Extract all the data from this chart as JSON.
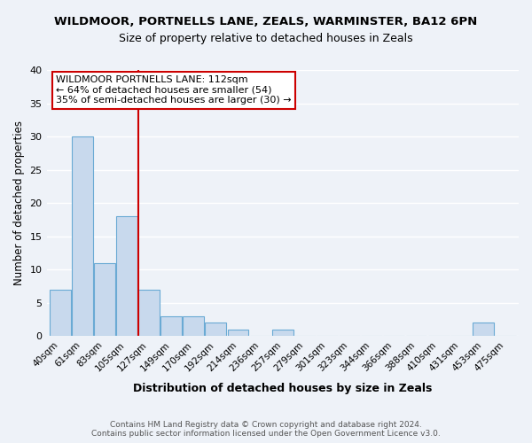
{
  "title": "WILDMOOR, PORTNELLS LANE, ZEALS, WARMINSTER, BA12 6PN",
  "subtitle": "Size of property relative to detached houses in Zeals",
  "xlabel": "Distribution of detached houses by size in Zeals",
  "ylabel": "Number of detached properties",
  "bin_labels": [
    "40sqm",
    "61sqm",
    "83sqm",
    "105sqm",
    "127sqm",
    "149sqm",
    "170sqm",
    "192sqm",
    "214sqm",
    "236sqm",
    "257sqm",
    "279sqm",
    "301sqm",
    "323sqm",
    "344sqm",
    "366sqm",
    "388sqm",
    "410sqm",
    "431sqm",
    "453sqm",
    "475sqm"
  ],
  "bin_counts": [
    7,
    30,
    11,
    18,
    7,
    3,
    3,
    2,
    1,
    0,
    1,
    0,
    0,
    0,
    0,
    0,
    0,
    0,
    0,
    2,
    0
  ],
  "bar_color": "#c8d9ed",
  "bar_edge_color": "#6aaad4",
  "ylim": [
    0,
    40
  ],
  "yticks": [
    0,
    5,
    10,
    15,
    20,
    25,
    30,
    35,
    40
  ],
  "property_line_x": 3.5,
  "property_line_color": "#cc0000",
  "annotation_title": "WILDMOOR PORTNELLS LANE: 112sqm",
  "annotation_line1": "← 64% of detached houses are smaller (54)",
  "annotation_line2": "35% of semi-detached houses are larger (30) →",
  "annotation_box_color": "#cc0000",
  "footer_line1": "Contains HM Land Registry data © Crown copyright and database right 2024.",
  "footer_line2": "Contains public sector information licensed under the Open Government Licence v3.0.",
  "background_color": "#eef2f8",
  "grid_color": "#ffffff"
}
